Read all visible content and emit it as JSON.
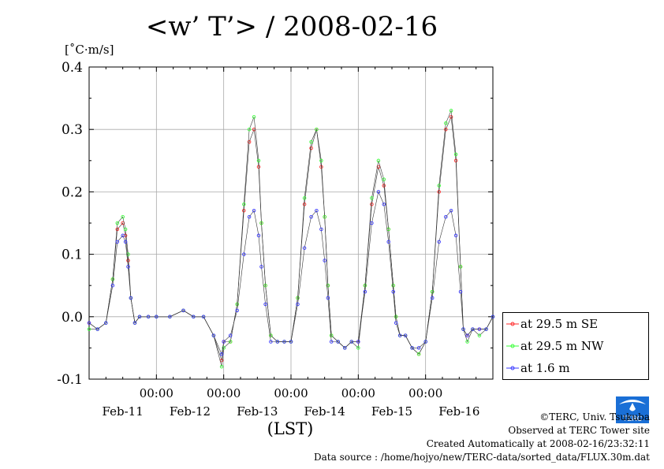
{
  "page": {
    "title": "<w’ T’> / 2008-02-16",
    "unit": "[˚C·m/s]",
    "credits": [
      "©TERC, Univ. Tsukuba",
      "Observed at TERC Tower site",
      "Created Automatically at 2008-02-16/23:32:11",
      "Data source : /home/hojyo/new/TERC-data/sorted_data/FLUX.30m.dat"
    ],
    "logo_text": "TERC"
  },
  "chart_data": {
    "type": "line",
    "title": "<w’ T’> / 2008-02-16",
    "ylabel": "[˚C·m/s]",
    "xlabel": "(LST)",
    "ylim": [
      -0.1,
      0.4
    ],
    "yticks": [
      "0.4",
      "0.3",
      "0.2",
      "0.1",
      "0.0",
      "-0.1"
    ],
    "ytick_values": [
      0.4,
      0.3,
      0.2,
      0.1,
      0.0,
      -0.1
    ],
    "xlim_days": [
      0,
      6
    ],
    "xticks_time": [
      "00:00",
      "00:00",
      "00:00",
      "00:00",
      "00:00"
    ],
    "xtick_day_positions": [
      1,
      2,
      3,
      4,
      5
    ],
    "xticks_date": [
      "Feb-11",
      "Feb-12",
      "Feb-13",
      "Feb-14",
      "Feb-15",
      "Feb-16"
    ],
    "grid": true,
    "legend_position": "right-bottom",
    "series": [
      {
        "name": "at 29.5 m SE",
        "color": "#ff2a2a",
        "x": [
          0.0,
          0.125,
          0.25,
          0.35,
          0.42,
          0.5,
          0.54,
          0.58,
          0.62,
          0.68,
          0.75,
          0.88,
          1.0,
          1.2,
          1.4,
          1.55,
          1.7,
          1.85,
          1.97,
          2.0,
          2.1,
          2.2,
          2.3,
          2.38,
          2.45,
          2.52,
          2.56,
          2.62,
          2.7,
          2.8,
          2.9,
          3.0,
          3.1,
          3.2,
          3.3,
          3.38,
          3.45,
          3.5,
          3.55,
          3.6,
          3.7,
          3.8,
          3.9,
          4.0,
          4.1,
          4.2,
          4.3,
          4.38,
          4.45,
          4.52,
          4.56,
          4.62,
          4.7,
          4.8,
          4.9,
          5.0,
          5.1,
          5.2,
          5.3,
          5.38,
          5.45,
          5.52,
          5.56,
          5.62,
          5.7,
          5.8,
          5.9,
          6.0
        ],
        "y": [
          -0.01,
          -0.02,
          -0.01,
          0.06,
          0.14,
          0.15,
          0.13,
          0.09,
          0.03,
          -0.01,
          0.0,
          0.0,
          0.0,
          0.0,
          0.01,
          0.0,
          0.0,
          -0.03,
          -0.07,
          -0.04,
          -0.04,
          0.02,
          0.17,
          0.28,
          0.3,
          0.24,
          0.15,
          0.05,
          -0.03,
          -0.04,
          -0.04,
          -0.04,
          0.03,
          0.18,
          0.27,
          0.3,
          0.24,
          0.16,
          0.05,
          -0.03,
          -0.04,
          -0.05,
          -0.04,
          -0.04,
          0.05,
          0.18,
          0.24,
          0.21,
          0.14,
          0.05,
          0.0,
          -0.03,
          -0.03,
          -0.05,
          -0.06,
          -0.04,
          0.04,
          0.2,
          0.3,
          0.32,
          0.25,
          0.08,
          -0.02,
          -0.03,
          -0.02,
          -0.02,
          -0.02,
          0.0
        ]
      },
      {
        "name": "at 29.5 m NW",
        "color": "#3aff3a",
        "x": [
          0.0,
          0.125,
          0.25,
          0.35,
          0.42,
          0.5,
          0.54,
          0.58,
          0.62,
          0.68,
          0.75,
          0.88,
          1.0,
          1.2,
          1.4,
          1.55,
          1.7,
          1.85,
          1.97,
          2.0,
          2.1,
          2.2,
          2.3,
          2.38,
          2.45,
          2.52,
          2.56,
          2.62,
          2.7,
          2.8,
          2.9,
          3.0,
          3.1,
          3.2,
          3.3,
          3.38,
          3.45,
          3.5,
          3.55,
          3.6,
          3.7,
          3.8,
          3.9,
          4.0,
          4.1,
          4.2,
          4.3,
          4.38,
          4.45,
          4.52,
          4.56,
          4.62,
          4.7,
          4.8,
          4.9,
          5.0,
          5.1,
          5.2,
          5.3,
          5.38,
          5.45,
          5.52,
          5.56,
          5.62,
          5.7,
          5.8,
          5.9,
          6.0
        ],
        "y": [
          -0.02,
          -0.02,
          -0.01,
          0.06,
          0.15,
          0.16,
          0.14,
          0.1,
          0.03,
          -0.01,
          0.0,
          0.0,
          0.0,
          0.0,
          0.01,
          0.0,
          0.0,
          -0.03,
          -0.08,
          -0.05,
          -0.04,
          0.02,
          0.18,
          0.3,
          0.32,
          0.25,
          0.15,
          0.05,
          -0.03,
          -0.04,
          -0.04,
          -0.04,
          0.03,
          0.19,
          0.28,
          0.3,
          0.25,
          0.16,
          0.05,
          -0.03,
          -0.04,
          -0.05,
          -0.04,
          -0.05,
          0.05,
          0.19,
          0.25,
          0.22,
          0.14,
          0.05,
          0.0,
          -0.03,
          -0.03,
          -0.05,
          -0.06,
          -0.04,
          0.04,
          0.21,
          0.31,
          0.33,
          0.26,
          0.08,
          -0.02,
          -0.04,
          -0.02,
          -0.03,
          -0.02,
          0.0
        ]
      },
      {
        "name": "at 1.6 m",
        "color": "#3a3aff",
        "x": [
          0.0,
          0.125,
          0.25,
          0.35,
          0.42,
          0.5,
          0.54,
          0.58,
          0.62,
          0.68,
          0.75,
          0.88,
          1.0,
          1.2,
          1.4,
          1.55,
          1.7,
          1.85,
          1.97,
          2.0,
          2.1,
          2.2,
          2.3,
          2.38,
          2.45,
          2.52,
          2.56,
          2.62,
          2.7,
          2.8,
          2.9,
          3.0,
          3.1,
          3.2,
          3.3,
          3.38,
          3.45,
          3.5,
          3.55,
          3.6,
          3.7,
          3.8,
          3.9,
          4.0,
          4.1,
          4.2,
          4.3,
          4.38,
          4.45,
          4.52,
          4.56,
          4.62,
          4.7,
          4.8,
          4.9,
          5.0,
          5.1,
          5.2,
          5.3,
          5.38,
          5.45,
          5.52,
          5.56,
          5.62,
          5.7,
          5.8,
          5.9,
          6.0
        ],
        "y": [
          -0.01,
          -0.02,
          -0.01,
          0.05,
          0.12,
          0.13,
          0.12,
          0.08,
          0.03,
          -0.01,
          0.0,
          0.0,
          0.0,
          0.0,
          0.01,
          0.0,
          0.0,
          -0.03,
          -0.06,
          -0.04,
          -0.03,
          0.01,
          0.1,
          0.16,
          0.17,
          0.13,
          0.08,
          0.02,
          -0.04,
          -0.04,
          -0.04,
          -0.04,
          0.02,
          0.11,
          0.16,
          0.17,
          0.14,
          0.09,
          0.03,
          -0.04,
          -0.04,
          -0.05,
          -0.04,
          -0.04,
          0.04,
          0.15,
          0.2,
          0.18,
          0.12,
          0.04,
          -0.01,
          -0.03,
          -0.03,
          -0.05,
          -0.05,
          -0.04,
          0.03,
          0.12,
          0.16,
          0.17,
          0.13,
          0.04,
          -0.02,
          -0.03,
          -0.02,
          -0.02,
          -0.02,
          0.0
        ]
      }
    ]
  }
}
